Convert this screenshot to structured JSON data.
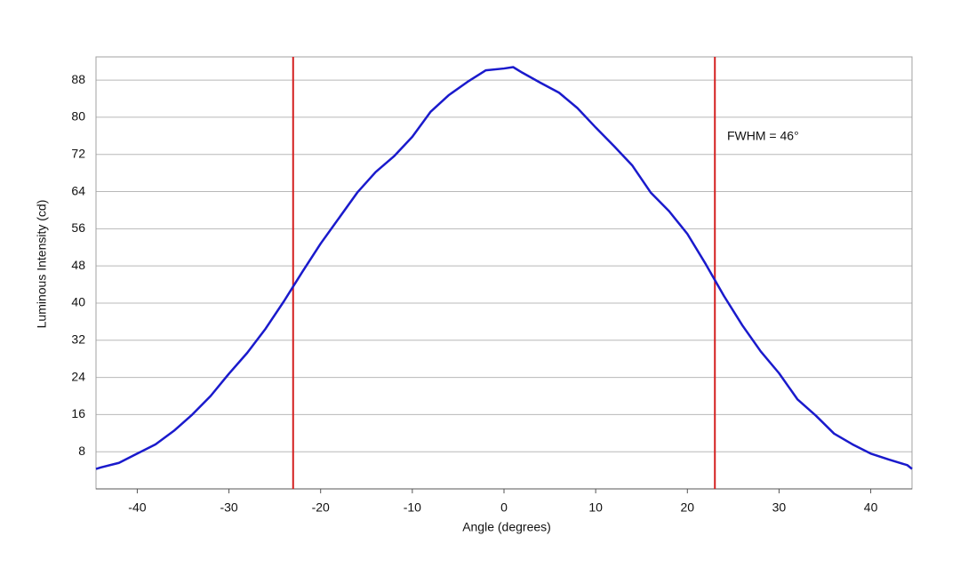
{
  "chart_data": {
    "type": "line",
    "x_label": "Angle (degrees)",
    "y_label": "Luminous Intensity (cd)",
    "annotation": "FWHM = 46°",
    "x": [
      -44.5,
      -44,
      -42,
      -40,
      -38,
      -36,
      -34,
      -32,
      -30,
      -28,
      -26,
      -24,
      -22,
      -20,
      -18,
      -16,
      -14,
      -12,
      -10,
      -8,
      -6,
      -4,
      -2,
      0,
      1,
      2,
      4,
      6,
      8,
      10,
      12,
      14,
      16,
      18,
      20,
      22,
      24,
      26,
      28,
      30,
      32,
      34,
      36,
      38,
      40,
      42,
      44,
      44.5
    ],
    "series": [
      {
        "name": "Luminous Intensity",
        "color": "#1a1acc",
        "values": [
          4.3,
          4.6,
          5.6,
          7.6,
          9.6,
          12.5,
          16,
          20,
          24.8,
          29.3,
          34.5,
          40.4,
          46.7,
          52.8,
          58.3,
          63.8,
          68.2,
          71.6,
          75.8,
          81.2,
          84.8,
          87.6,
          90.1,
          90.5,
          90.8,
          89.6,
          87.4,
          85.3,
          82,
          77.8,
          73.8,
          69.6,
          63.8,
          59.8,
          54.9,
          48.4,
          41.5,
          35.2,
          29.6,
          24.9,
          19.3,
          15.8,
          11.9,
          9.6,
          7.6,
          6.3,
          5.1,
          4.3
        ]
      }
    ],
    "vlines": {
      "color": "#d42020",
      "values": [
        -23,
        23
      ]
    },
    "xlim": [
      -44.5,
      44.5
    ],
    "xticks": [
      -40,
      -30,
      -20,
      -10,
      0,
      10,
      20,
      30,
      40
    ],
    "ylim": [
      0,
      93
    ],
    "yticks": [
      8,
      16,
      24,
      32,
      40,
      48,
      56,
      64,
      72,
      80,
      88
    ],
    "grid": true
  }
}
